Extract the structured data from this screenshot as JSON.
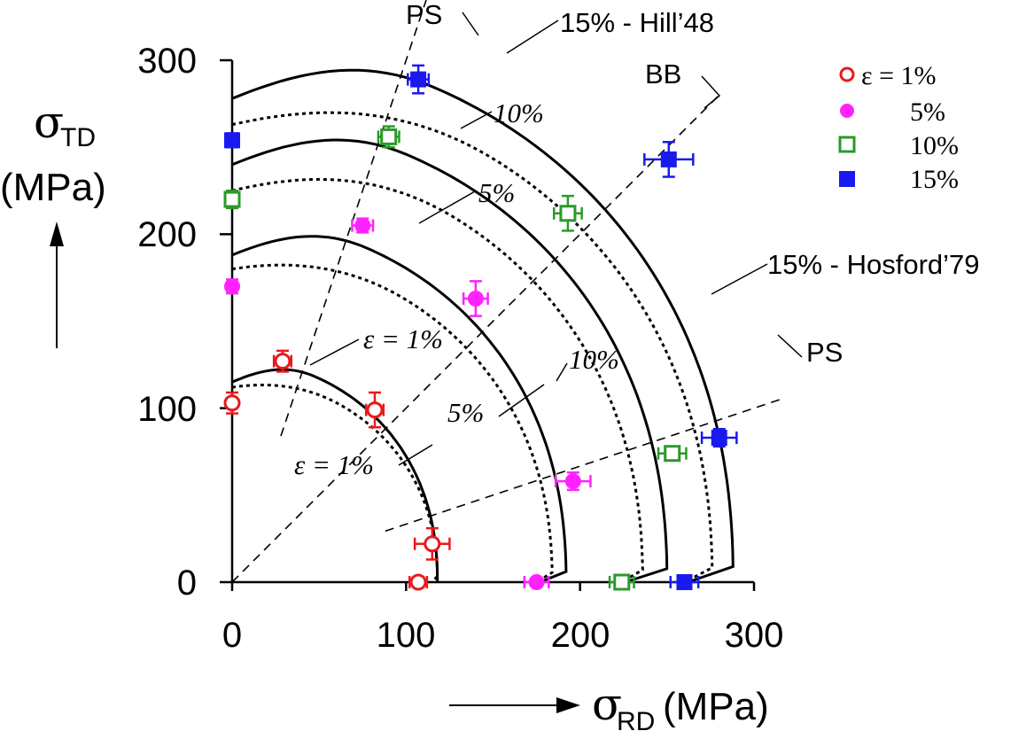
{
  "chart_data": {
    "type": "scatter",
    "x_axis": {
      "symbol": "σ",
      "subscript": "RD",
      "unit": "(MPa)",
      "range": [
        0,
        300
      ],
      "ticks": [
        "0",
        "100",
        "200",
        "300"
      ]
    },
    "y_axis": {
      "symbol": "σ",
      "subscript": "TD",
      "unit": "(MPa)",
      "range": [
        0,
        300
      ],
      "ticks": [
        "0",
        "100",
        "200",
        "300"
      ]
    },
    "legend": {
      "position": "top-right",
      "entries": [
        {
          "label": "ε = 1%",
          "marker": "open-circle",
          "color": "#e8191c"
        },
        {
          "label": "5%",
          "marker": "filled-circle",
          "color": "#ff22ff"
        },
        {
          "label": "10%",
          "marker": "open-square",
          "color": "#2a9a2a"
        },
        {
          "label": "15%",
          "marker": "filled-square",
          "color": "#1a1aee"
        }
      ]
    },
    "series": [
      {
        "name": "ε = 1%",
        "marker": "open-circle",
        "color": "#e8191c",
        "points": [
          {
            "x": 0,
            "y": 103,
            "xerr": 0,
            "yerr": 6
          },
          {
            "x": 29,
            "y": 127,
            "xerr": 5,
            "yerr": 6
          },
          {
            "x": 82,
            "y": 99,
            "xerr": 5,
            "yerr": 10
          },
          {
            "x": 115,
            "y": 22,
            "xerr": 10,
            "yerr": 9
          },
          {
            "x": 107,
            "y": 0,
            "xerr": 5,
            "yerr": 0
          }
        ]
      },
      {
        "name": "5%",
        "marker": "filled-circle",
        "color": "#ff22ff",
        "points": [
          {
            "x": 0,
            "y": 170,
            "xerr": 0,
            "yerr": 4
          },
          {
            "x": 75,
            "y": 205,
            "xerr": 6,
            "yerr": 4
          },
          {
            "x": 140,
            "y": 163,
            "xerr": 7,
            "yerr": 10
          },
          {
            "x": 196,
            "y": 58,
            "xerr": 10,
            "yerr": 5
          },
          {
            "x": 175,
            "y": 0,
            "xerr": 7,
            "yerr": 0
          }
        ]
      },
      {
        "name": "10%",
        "marker": "open-square",
        "color": "#2a9a2a",
        "points": [
          {
            "x": 0,
            "y": 220,
            "xerr": 0,
            "yerr": 5
          },
          {
            "x": 90,
            "y": 256,
            "xerr": 6,
            "yerr": 6
          },
          {
            "x": 193,
            "y": 212,
            "xerr": 8,
            "yerr": 10
          },
          {
            "x": 253,
            "y": 74,
            "xerr": 8,
            "yerr": 4
          },
          {
            "x": 224,
            "y": 0,
            "xerr": 7,
            "yerr": 0
          }
        ]
      },
      {
        "name": "15%",
        "marker": "filled-square",
        "color": "#1a1aee",
        "points": [
          {
            "x": 0,
            "y": 254,
            "xerr": 0,
            "yerr": 4
          },
          {
            "x": 107,
            "y": 289,
            "xerr": 6,
            "yerr": 8
          },
          {
            "x": 251,
            "y": 243,
            "xerr": 14,
            "yerr": 10
          },
          {
            "x": 280,
            "y": 83,
            "xerr": 10,
            "yerr": 5
          },
          {
            "x": 260,
            "y": 0,
            "xerr": 8,
            "yerr": 0
          }
        ]
      }
    ],
    "curves": {
      "hill48": [
        {
          "strain": "1%",
          "x0": 118,
          "y0": 115,
          "xmax": 118,
          "ymax": 128
        },
        {
          "strain": "5%",
          "x0": 177,
          "y0": 188,
          "xmax": 192,
          "ymax": 208
        },
        {
          "strain": "10%",
          "x0": 226,
          "y0": 240,
          "xmax": 250,
          "ymax": 266
        },
        {
          "strain": "15%",
          "x0": 262,
          "y0": 278,
          "xmax": 288,
          "ymax": 308
        }
      ],
      "hosford79": [
        {
          "strain": "1%",
          "x0": 115,
          "y0": 112,
          "xmax": 118,
          "ymax": 118
        },
        {
          "strain": "5%",
          "x0": 175,
          "y0": 180,
          "xmax": 184,
          "ymax": 190
        },
        {
          "strain": "10%",
          "x0": 224,
          "y0": 225,
          "xmax": 236,
          "ymax": 245
        },
        {
          "strain": "15%",
          "x0": 260,
          "y0": 263,
          "xmax": 276,
          "ymax": 285
        }
      ]
    },
    "reference_lines": [
      {
        "label": "PS",
        "slope": 3.0
      },
      {
        "label": "BB",
        "slope": 1.0
      },
      {
        "label": "PS",
        "slope": 0.3333
      }
    ],
    "annotations": {
      "ps_top": "PS",
      "hill48_label": "15% - Hill’48",
      "bb": "BB",
      "hosford_label": "15% - Hosford’79",
      "ps_right": "PS",
      "hill_10": "10%",
      "hill_5": "5%",
      "hill_1": "ε = 1%",
      "hos_10": "10%",
      "hos_5": "5%",
      "hos_1": "ε = 1%"
    }
  }
}
